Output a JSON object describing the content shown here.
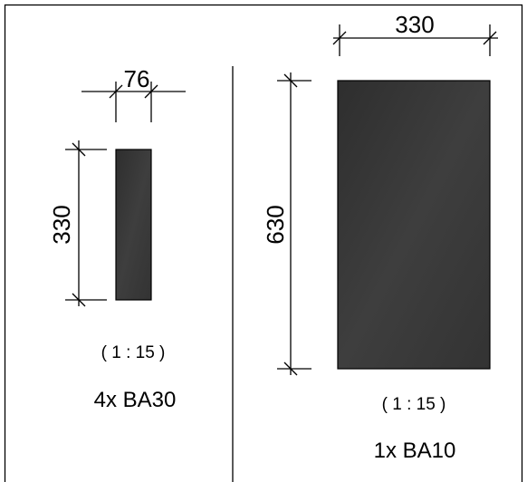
{
  "left_panel": {
    "width_dimension": "76",
    "height_dimension": "330",
    "scale": "( 1 : 15 )",
    "label": "4x BA30",
    "fill_color": "#3a3a3a"
  },
  "right_panel": {
    "width_dimension": "330",
    "height_dimension": "630",
    "scale": "( 1 : 15 )",
    "label": "1x BA10",
    "fill_color": "#3a3a3a"
  }
}
